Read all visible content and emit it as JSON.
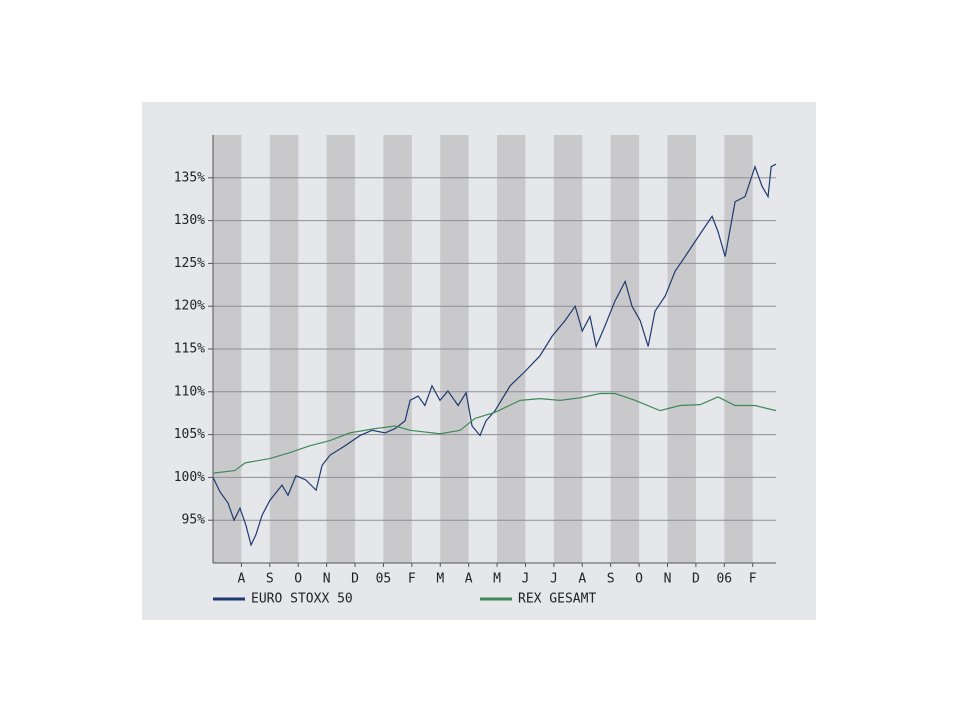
{
  "chart_data": {
    "type": "line",
    "xlim": [
      0,
      19.82
    ],
    "xticks": [
      {
        "value": 1,
        "label": "A"
      },
      {
        "value": 2,
        "label": "S"
      },
      {
        "value": 3,
        "label": "O"
      },
      {
        "value": 4,
        "label": "N"
      },
      {
        "value": 5,
        "label": "D"
      },
      {
        "value": 6,
        "label": "05"
      },
      {
        "value": 7,
        "label": "F"
      },
      {
        "value": 8,
        "label": "M"
      },
      {
        "value": 9,
        "label": "A"
      },
      {
        "value": 10,
        "label": "M"
      },
      {
        "value": 11,
        "label": "J"
      },
      {
        "value": 12,
        "label": "J"
      },
      {
        "value": 13,
        "label": "A"
      },
      {
        "value": 14,
        "label": "S"
      },
      {
        "value": 15,
        "label": "O"
      },
      {
        "value": 16,
        "label": "N"
      },
      {
        "value": 17,
        "label": "D"
      },
      {
        "value": 18,
        "label": "06"
      },
      {
        "value": 19,
        "label": "F"
      }
    ],
    "ylim": [
      90,
      140
    ],
    "yticks": [
      {
        "value": 95,
        "label": "95%"
      },
      {
        "value": 100,
        "label": "100%"
      },
      {
        "value": 105,
        "label": "105%"
      },
      {
        "value": 110,
        "label": "110%"
      },
      {
        "value": 115,
        "label": "115%"
      },
      {
        "value": 120,
        "label": "120%"
      },
      {
        "value": 125,
        "label": "125%"
      },
      {
        "value": 130,
        "label": "130%"
      },
      {
        "value": 135,
        "label": "135%"
      }
    ],
    "grid": true,
    "legend": "bottom",
    "series": [
      {
        "name": "EURO STOXX 50",
        "color": "#1f3a70",
        "x": [
          0,
          0.25,
          0.53,
          0.74,
          0.95,
          1.16,
          1.34,
          1.51,
          1.73,
          2.0,
          2.43,
          2.64,
          2.92,
          3.27,
          3.63,
          3.84,
          4.12,
          4.65,
          5.18,
          5.6,
          6.06,
          6.41,
          6.76,
          6.94,
          7.22,
          7.46,
          7.71,
          7.99,
          8.27,
          8.63,
          8.91,
          9.12,
          9.4,
          9.61,
          9.93,
          10.46,
          10.99,
          11.51,
          11.94,
          12.39,
          12.75,
          13.0,
          13.27,
          13.49,
          13.8,
          14.15,
          14.51,
          14.75,
          15.04,
          15.32,
          15.56,
          15.92,
          16.27,
          16.62,
          17.08,
          17.57,
          17.78,
          18.03,
          18.38,
          18.73,
          19.08,
          19.33,
          19.54,
          19.65,
          19.82
        ],
        "values": [
          100,
          98.3,
          97,
          95,
          96.4,
          94.4,
          92.1,
          93.3,
          95.6,
          97.3,
          99.1,
          97.9,
          100.2,
          99.7,
          98.5,
          101.4,
          102.6,
          103.7,
          104.9,
          105.5,
          105.2,
          105.7,
          106.6,
          109,
          109.5,
          108.4,
          110.7,
          109,
          110.1,
          108.4,
          109.9,
          106,
          104.9,
          106.6,
          107.8,
          110.7,
          112.4,
          114.2,
          116.5,
          118.3,
          120,
          117.1,
          118.8,
          115.3,
          117.7,
          120.6,
          122.9,
          120,
          118.3,
          115.3,
          119.4,
          121.2,
          124.1,
          125.8,
          128.1,
          130.5,
          128.7,
          125.8,
          132.2,
          132.8,
          136.3,
          134,
          132.8,
          136.3,
          136.6
        ]
      },
      {
        "name": "REX GESAMT",
        "color": "#3f8a5a",
        "x": [
          0,
          0.77,
          1.13,
          2.0,
          2.71,
          3.42,
          4.12,
          4.82,
          5.7,
          6.41,
          6.94,
          7.99,
          8.7,
          9.23,
          9.93,
          10.81,
          11.51,
          12.22,
          12.92,
          13.63,
          14.15,
          14.86,
          15.74,
          16.44,
          17.15,
          17.78,
          18.38,
          19.08,
          19.82
        ],
        "values": [
          100.5,
          100.8,
          101.7,
          102.2,
          102.9,
          103.7,
          104.3,
          105.2,
          105.7,
          106,
          105.5,
          105.1,
          105.5,
          106.9,
          107.6,
          109,
          109.2,
          109,
          109.3,
          109.8,
          109.8,
          109,
          107.8,
          108.4,
          108.5,
          109.4,
          108.4,
          108.4,
          107.8
        ]
      }
    ]
  }
}
